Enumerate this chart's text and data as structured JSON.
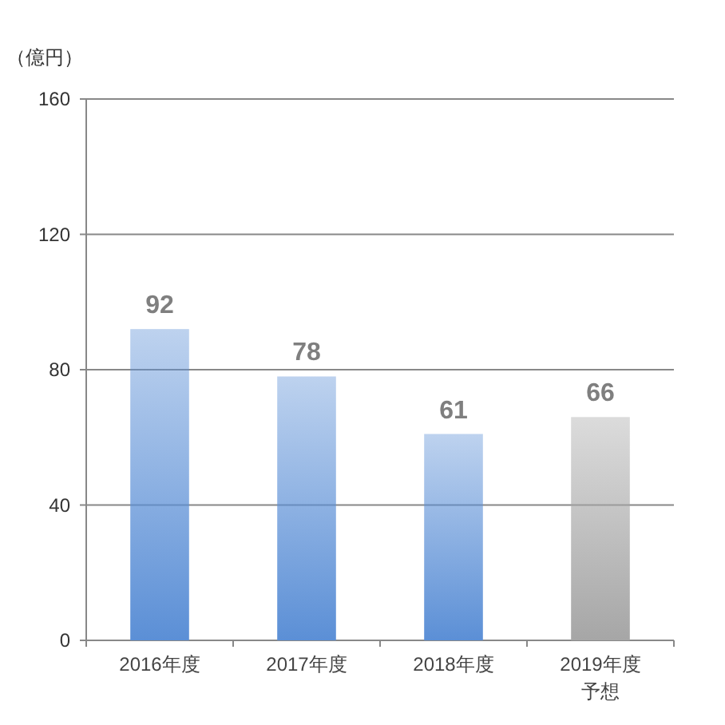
{
  "chart_data": {
    "type": "bar",
    "ylabel": "（億円）",
    "categories": [
      "2016年度",
      "2017年度",
      "2018年度",
      "2019年度予想"
    ],
    "values": [
      92,
      78,
      61,
      66
    ],
    "colors": [
      "#5b8fd6",
      "#5b8fd6",
      "#5b8fd6",
      "#a6a6a6"
    ],
    "ylim": [
      0,
      160
    ],
    "yticks": [
      0,
      40,
      80,
      120,
      160
    ],
    "grid": "y",
    "data_labels": true
  }
}
